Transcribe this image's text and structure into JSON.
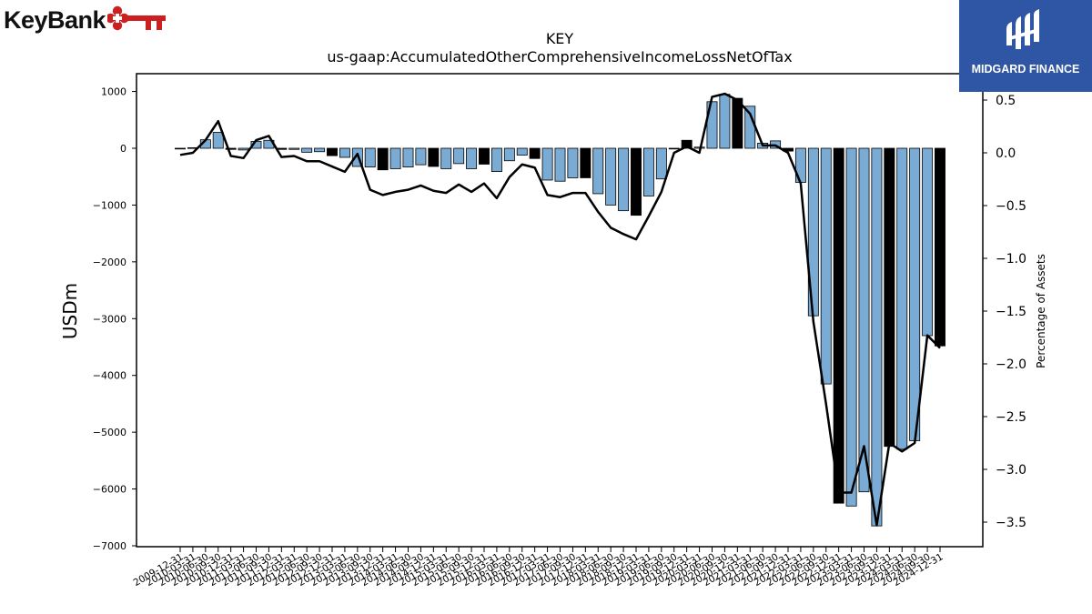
{
  "logos": {
    "left_brand": "KeyBank",
    "right_brand": "MIDGARD FINANCE"
  },
  "chart_data": {
    "type": "bar",
    "title": "KEY",
    "subtitle": "us-gaap:AccumulatedOtherComprehensiveIncomeLossNetOfTax",
    "ylabel": "USDm",
    "y2label": "Percentage of Assets",
    "ylim": [
      -7000,
      1300
    ],
    "y2lim": [
      -3.7,
      0.65
    ],
    "yticks": [
      1000,
      0,
      -1000,
      -2000,
      -3000,
      -4000,
      -5000,
      -6000,
      -7000
    ],
    "y2ticks": [
      0.5,
      0.0,
      -0.5,
      -1.0,
      -1.5,
      -2.0,
      -2.5,
      -3.0,
      -3.5
    ],
    "yticklabels": [
      "1000",
      "0",
      "−1000",
      "−2000",
      "−3000",
      "−4000",
      "−5000",
      "−6000",
      "−7000"
    ],
    "y2ticklabels": [
      "0.5",
      "0.0",
      "−0.5",
      "−1.0",
      "−1.5",
      "−2.0",
      "−2.5",
      "−3.0",
      "−3.5"
    ],
    "grid": false,
    "colors": {
      "bar_quarter": "#7aabd4",
      "bar_year_end": "#000000",
      "line": "#000000",
      "logo_red": "#cc1f1f",
      "logo_blue": "#2f56a5"
    },
    "categories": [
      "2009-12-31",
      "2010-03-31",
      "2010-06-30",
      "2010-09-30",
      "2010-12-31",
      "2011-03-31",
      "2011-06-30",
      "2011-09-30",
      "2011-12-31",
      "2012-03-31",
      "2012-06-30",
      "2012-09-30",
      "2012-12-31",
      "2013-03-31",
      "2013-06-30",
      "2013-09-30",
      "2013-12-31",
      "2014-03-31",
      "2014-06-30",
      "2014-09-30",
      "2014-12-31",
      "2015-03-31",
      "2015-06-30",
      "2015-09-30",
      "2015-12-31",
      "2016-03-31",
      "2016-06-30",
      "2016-09-30",
      "2016-12-31",
      "2017-03-31",
      "2017-06-30",
      "2017-09-30",
      "2017-12-31",
      "2018-03-31",
      "2018-06-30",
      "2018-09-30",
      "2018-12-31",
      "2019-03-31",
      "2019-06-30",
      "2019-09-30",
      "2019-12-31",
      "2020-03-31",
      "2020-06-30",
      "2020-09-30",
      "2020-12-31",
      "2021-03-31",
      "2021-06-30",
      "2021-09-30",
      "2021-12-31",
      "2022-03-31",
      "2022-06-30",
      "2022-09-30",
      "2022-12-31",
      "2023-03-31",
      "2023-06-30",
      "2023-09-30",
      "2023-12-31",
      "2024-03-31",
      "2024-06-30",
      "2024-09-30",
      "2024-12-31"
    ],
    "series": [
      {
        "type": "bar",
        "values": [
          -5,
          10,
          150,
          280,
          -20,
          -30,
          120,
          140,
          -20,
          -20,
          -70,
          -60,
          -130,
          -160,
          -320,
          -330,
          -380,
          -360,
          -330,
          -290,
          -320,
          -360,
          -270,
          -360,
          -280,
          -410,
          -220,
          -120,
          -180,
          -560,
          -580,
          -520,
          -520,
          -800,
          -1000,
          -1100,
          -1180,
          -840,
          -540,
          -10,
          140,
          20,
          820,
          950,
          880,
          740,
          90,
          130,
          -50,
          -600,
          -2950,
          -4150,
          -6250,
          -6300,
          -6050,
          -6650,
          -5250,
          -5300,
          -5150,
          -3300,
          -3480
        ]
      },
      {
        "type": "line",
        "axis": "right",
        "values": [
          -0.02,
          0.0,
          0.12,
          0.3,
          -0.03,
          -0.05,
          0.12,
          0.16,
          -0.04,
          -0.03,
          -0.08,
          -0.08,
          -0.13,
          -0.18,
          -0.01,
          -0.35,
          -0.4,
          -0.37,
          -0.35,
          -0.31,
          -0.36,
          -0.38,
          -0.3,
          -0.37,
          -0.29,
          -0.43,
          -0.23,
          -0.11,
          -0.14,
          -0.4,
          -0.42,
          -0.38,
          -0.38,
          -0.56,
          -0.71,
          -0.77,
          -0.82,
          -0.6,
          -0.37,
          0.0,
          0.06,
          0.0,
          0.53,
          0.56,
          0.5,
          0.37,
          0.07,
          0.07,
          0.0,
          -0.29,
          -1.6,
          -2.38,
          -3.22,
          -3.22,
          -2.78,
          -3.53,
          -2.75,
          -2.83,
          -2.75,
          -1.73,
          -1.85
        ]
      }
    ]
  }
}
